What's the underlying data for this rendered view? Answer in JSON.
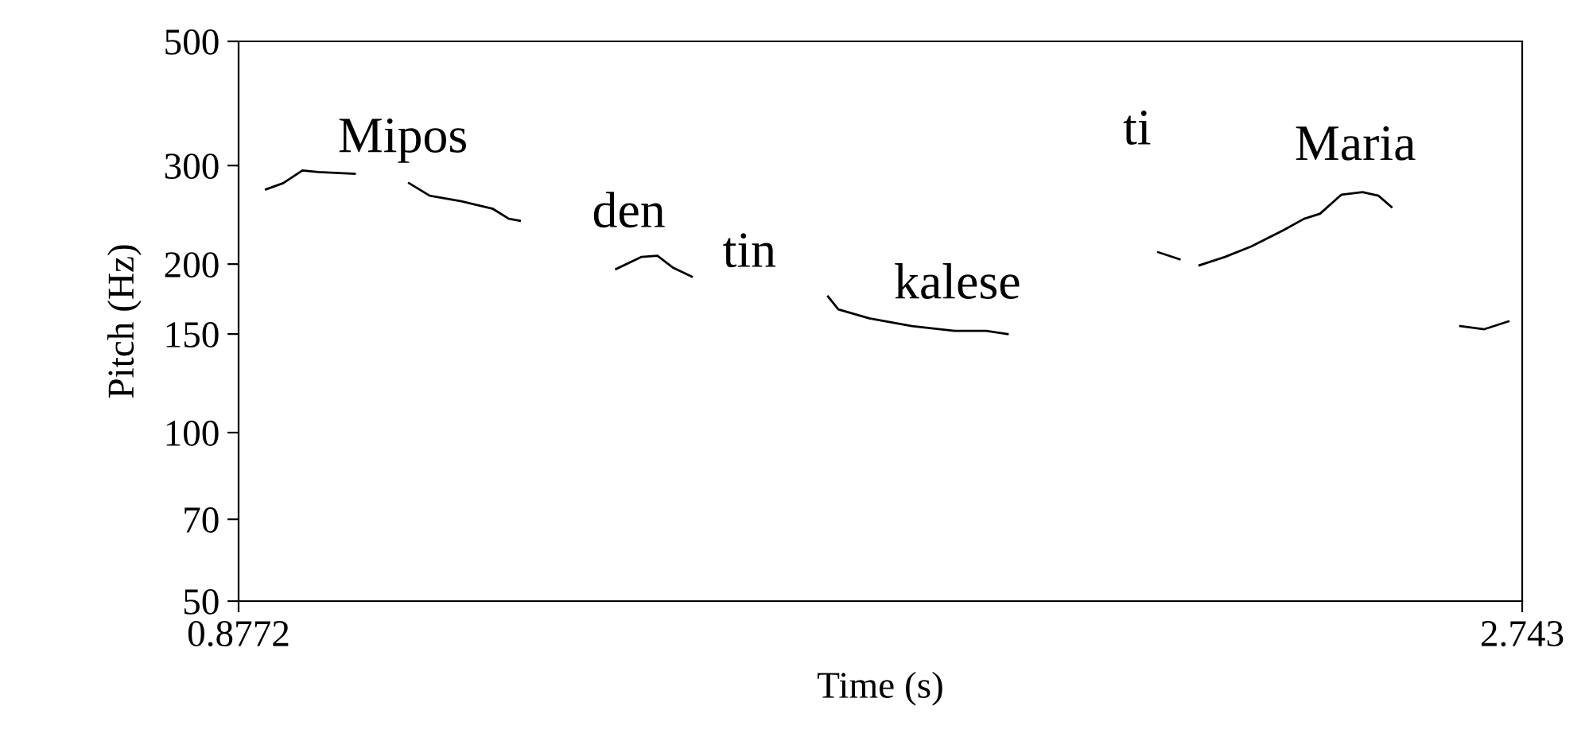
{
  "chart_data": {
    "type": "line",
    "xlabel": "Time (s)",
    "ylabel": "Pitch (Hz)",
    "xlim": [
      0.8772,
      2.743
    ],
    "xticks": [
      0.8772,
      2.743
    ],
    "ylim": [
      50,
      500
    ],
    "yticks": [
      50,
      70,
      100,
      150,
      200,
      300,
      500
    ],
    "log": "y",
    "grid": false,
    "legend": false,
    "marker": "none",
    "line_style": "solid",
    "series": [
      {
        "color": "#000000",
        "x": [
          0.917,
          0.942,
          0.97,
          0.993,
          1.046
        ],
        "values": [
          272,
          279,
          294,
          292,
          290
        ]
      },
      {
        "color": "#000000",
        "x": [
          1.125,
          1.155,
          1.201,
          1.247,
          1.27,
          1.286
        ],
        "values": [
          279,
          265,
          259,
          251,
          241,
          239
        ]
      },
      {
        "color": "#000000",
        "x": [
          1.426,
          1.463,
          1.486,
          1.509,
          1.536
        ],
        "values": [
          196,
          206,
          207,
          197,
          190
        ]
      },
      {
        "color": "#000000",
        "x": [
          1.734,
          1.749,
          1.794,
          1.856,
          1.918,
          1.964,
          1.995
        ],
        "values": [
          175,
          166,
          160,
          155,
          152,
          152,
          150
        ]
      },
      {
        "color": "#000000",
        "x": [
          2.214,
          2.245
        ],
        "values": [
          210,
          204
        ]
      },
      {
        "color": "#000000",
        "x": [
          2.274,
          2.311,
          2.349,
          2.396,
          2.426,
          2.449,
          2.48,
          2.511,
          2.534,
          2.553
        ],
        "values": [
          199,
          206,
          215,
          230,
          241,
          246,
          266,
          269,
          265,
          253
        ]
      },
      {
        "color": "#000000",
        "x": [
          2.653,
          2.688,
          2.723
        ],
        "values": [
          155,
          153,
          158
        ]
      }
    ],
    "annotations": [
      "Mipos",
      "den",
      "tin",
      "kalese",
      "ti",
      "Maria"
    ]
  }
}
